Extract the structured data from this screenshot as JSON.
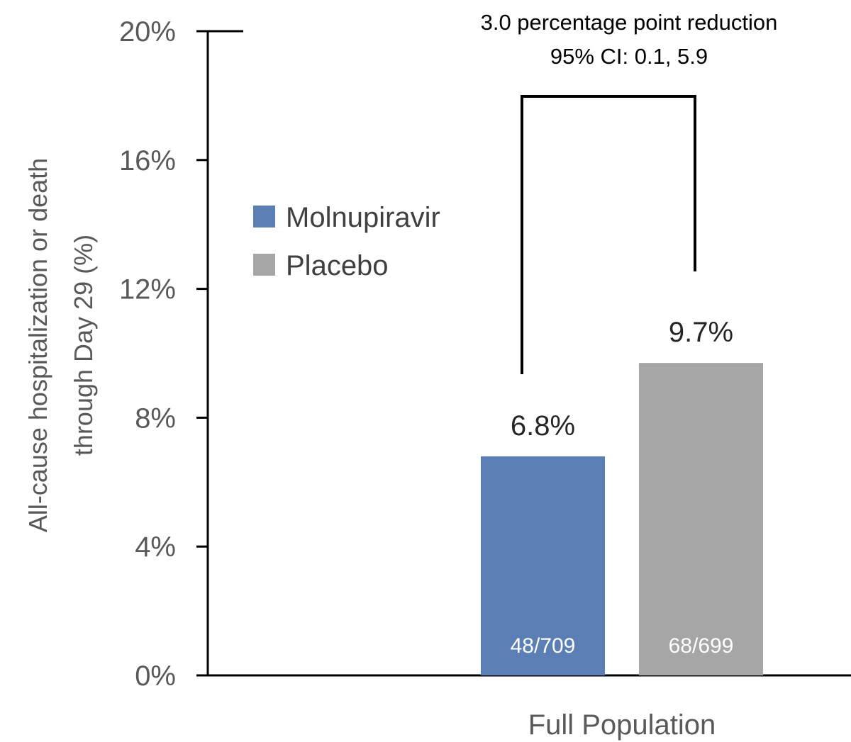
{
  "chart_data": {
    "type": "bar",
    "categories": [
      "Full Population"
    ],
    "xlabel": "Full Population",
    "ylabel_lines": [
      "All-cause hospitalization or death",
      "through Day 29 (%)"
    ],
    "ylim": [
      0,
      20
    ],
    "yticks": [
      0,
      4,
      8,
      12,
      16,
      20
    ],
    "ytick_labels": [
      "0%",
      "4%",
      "8%",
      "12%",
      "16%",
      "20%"
    ],
    "grid": false,
    "legend_position": "left-middle",
    "series": [
      {
        "name": "Molnupiravir",
        "values": [
          6.8
        ],
        "value_label": "6.8%",
        "count_label": "48/709",
        "color": "#5b7fb5"
      },
      {
        "name": "Placebo",
        "values": [
          9.7
        ],
        "value_label": "9.7%",
        "count_label": "68/699",
        "color": "#a6a6a6"
      }
    ],
    "annotation": {
      "lines": [
        "3.0 percentage point reduction",
        "95% CI: 0.1, 5.9"
      ]
    },
    "colors": {
      "axis": "#000000",
      "tick_text": "#595959",
      "value_text": "#262626",
      "count_text": "#ffffff"
    }
  }
}
